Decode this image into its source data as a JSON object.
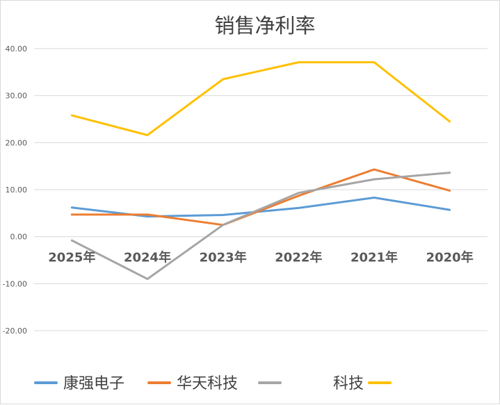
{
  "chart_data": {
    "type": "line",
    "title": "销售净利率",
    "categories": [
      "2025年",
      "2024年",
      "2023年",
      "2022年",
      "2021年",
      "2020年"
    ],
    "y_ticks": [
      "40.00",
      "30.00",
      "20.00",
      "10.00",
      "0.00",
      "-10.00",
      "-20.00"
    ],
    "ylim": [
      -20,
      40
    ],
    "grid": true,
    "legend_position": "bottom",
    "series": [
      {
        "name": "康强电子",
        "color": "#5b9bd5",
        "values": [
          6.2,
          4.3,
          4.6,
          6.1,
          8.3,
          5.7
        ]
      },
      {
        "name": "华天科技",
        "color": "#ed7d31",
        "values": [
          4.7,
          4.7,
          2.5,
          8.7,
          14.3,
          9.8
        ]
      },
      {
        "name": "科技",
        "color": "#a5a5a5",
        "values": [
          -0.8,
          -9.0,
          2.5,
          9.3,
          12.2,
          13.6
        ]
      },
      {
        "name": "",
        "color": "#ffc000",
        "values": [
          25.8,
          21.6,
          33.5,
          37.1,
          37.1,
          24.5
        ]
      }
    ]
  }
}
